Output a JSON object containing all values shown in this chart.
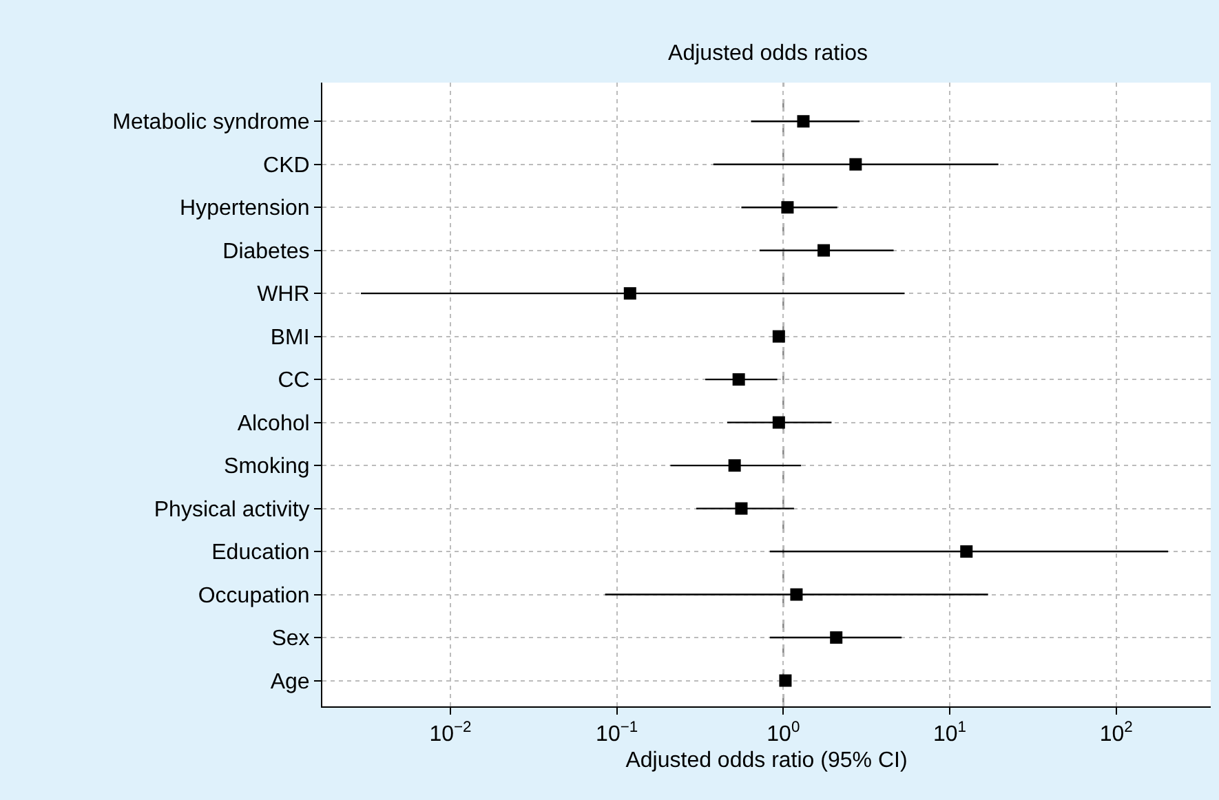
{
  "chart_data": {
    "type": "scatter",
    "orientation": "horizontal",
    "title": "Adjusted odds ratios",
    "xlabel": "Adjusted odds ratio (95% CI)",
    "categories": [
      "Metabolic syndrome",
      "CKD",
      "Hypertension",
      "Diabetes",
      "WHR",
      "BMI",
      "CC",
      "Alcohol",
      "Smoking",
      "Physical activity",
      "Education",
      "Occupation",
      "Sex",
      "Age"
    ],
    "series": [
      {
        "color": "#000000",
        "values": [
          1.32,
          2.72,
          1.06,
          1.75,
          0.12,
          0.94,
          0.54,
          0.94,
          0.51,
          0.56,
          12.6,
          1.2,
          2.08,
          1.03
        ],
        "errors": [
          [
            0.64,
            2.87
          ],
          [
            0.38,
            19.6
          ],
          [
            0.56,
            2.11
          ],
          [
            0.72,
            4.6
          ],
          [
            0.0029,
            5.35
          ],
          null,
          [
            0.34,
            0.92
          ],
          [
            0.46,
            1.95
          ],
          [
            0.21,
            1.28
          ],
          [
            0.3,
            1.16
          ],
          [
            0.83,
            205
          ],
          [
            0.085,
            17
          ],
          [
            0.83,
            5.14
          ],
          null
        ]
      }
    ],
    "log": "x",
    "xlim": [
      0.0017,
      370
    ],
    "xticks": [
      {
        "value": 0.01,
        "label": "10$^{−2}$"
      },
      {
        "value": 0.1,
        "label": "10$^{−1}$"
      },
      {
        "value": 1,
        "label": "10$^{0}$"
      },
      {
        "value": 10,
        "label": "10$^{1}$"
      },
      {
        "value": 100,
        "label": "10$^{2}$"
      }
    ],
    "ref_lines": [
      {
        "axis": "x",
        "value": 1,
        "color": "#888888",
        "line_style": "dashed"
      }
    ],
    "grid": true,
    "marker": "square"
  }
}
